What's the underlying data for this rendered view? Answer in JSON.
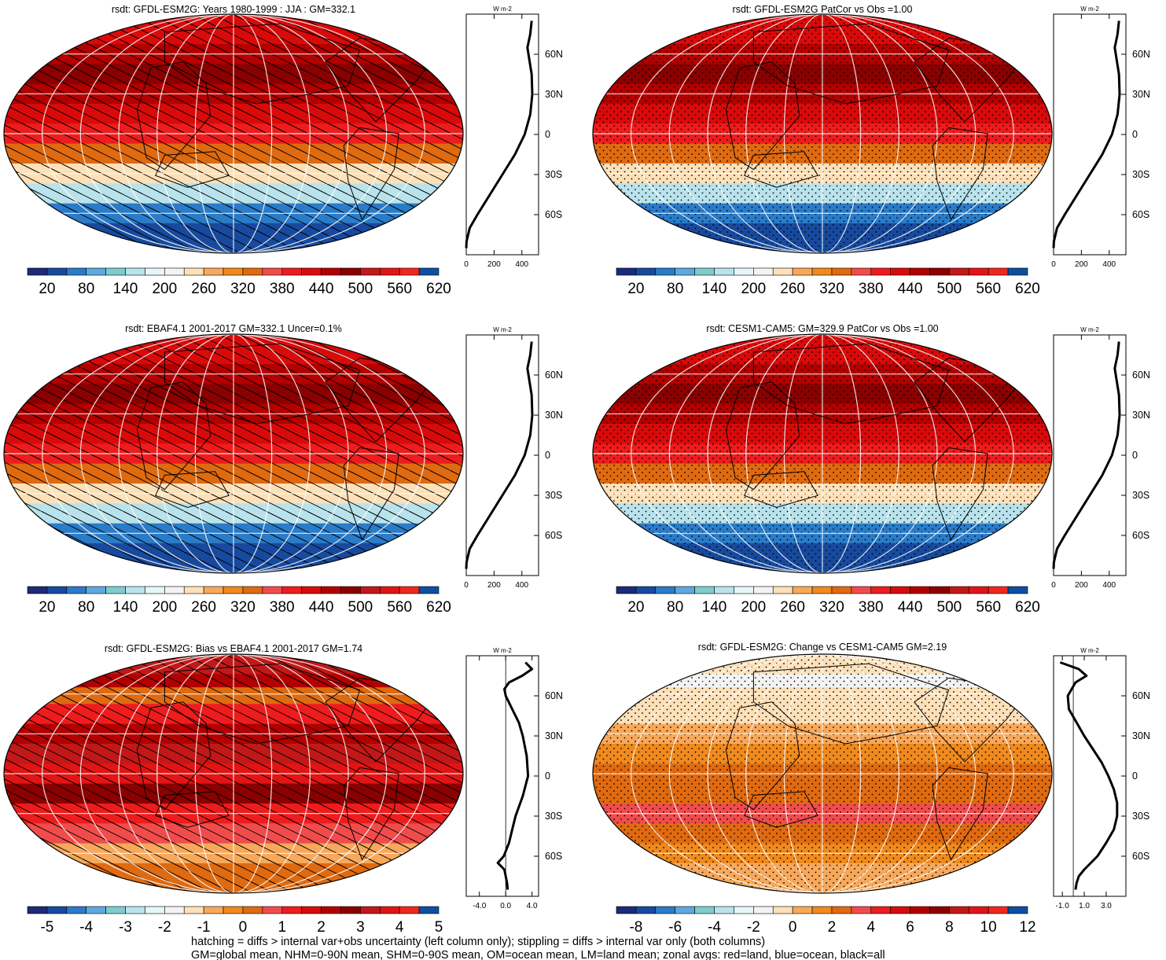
{
  "chart_data": [
    {
      "type": "heatmap",
      "panel": "top-left",
      "title": "rsdt: GFDL-ESM2G: Years 1980-1999 : JJA : GM=332.1",
      "overlay": "hatching",
      "colorbar_labels": [
        "20",
        "80",
        "140",
        "200",
        "260",
        "320",
        "380",
        "440",
        "500",
        "560",
        "620"
      ],
      "lat_bands": [
        {
          "lat": 75,
          "value": 455
        },
        {
          "lat": 60,
          "value": 470
        },
        {
          "lat": 45,
          "value": 495
        },
        {
          "lat": 30,
          "value": 485
        },
        {
          "lat": 15,
          "value": 460
        },
        {
          "lat": 0,
          "value": 400
        },
        {
          "lat": -15,
          "value": 345
        },
        {
          "lat": -30,
          "value": 260
        },
        {
          "lat": -45,
          "value": 165
        },
        {
          "lat": -60,
          "value": 70
        },
        {
          "lat": -75,
          "value": 10
        }
      ],
      "zonal": {
        "unit": "W m-2",
        "xticks": [
          "0",
          "200",
          "400"
        ],
        "xlim": [
          0,
          520
        ],
        "lats": [
          85,
          75,
          65,
          55,
          45,
          30,
          15,
          0,
          -15,
          -30,
          -45,
          -60,
          -70,
          -80,
          -85
        ],
        "values": [
          470,
          460,
          440,
          455,
          470,
          475,
          460,
          420,
          350,
          260,
          170,
          80,
          25,
          2,
          0
        ]
      },
      "lat_labels": [
        "60N",
        "30N",
        "0",
        "30S",
        "60S"
      ]
    },
    {
      "type": "heatmap",
      "panel": "top-right",
      "title": "rsdt: GFDL-ESM2G PatCor vs Obs =1.00",
      "overlay": "stippling",
      "colorbar_labels": [
        "20",
        "80",
        "140",
        "200",
        "260",
        "320",
        "380",
        "440",
        "500",
        "560",
        "620"
      ],
      "lat_bands": [
        {
          "lat": 75,
          "value": 455
        },
        {
          "lat": 60,
          "value": 470
        },
        {
          "lat": 45,
          "value": 495
        },
        {
          "lat": 30,
          "value": 485
        },
        {
          "lat": 15,
          "value": 460
        },
        {
          "lat": 0,
          "value": 400
        },
        {
          "lat": -15,
          "value": 345
        },
        {
          "lat": -30,
          "value": 260
        },
        {
          "lat": -45,
          "value": 165
        },
        {
          "lat": -60,
          "value": 70
        },
        {
          "lat": -75,
          "value": 10
        }
      ],
      "zonal": {
        "unit": "W m-2",
        "xticks": [
          "0",
          "200",
          "400"
        ],
        "xlim": [
          0,
          520
        ],
        "lats": [
          85,
          75,
          65,
          55,
          45,
          30,
          15,
          0,
          -15,
          -30,
          -45,
          -60,
          -70,
          -80,
          -85
        ],
        "values": [
          470,
          460,
          440,
          455,
          470,
          475,
          460,
          420,
          350,
          260,
          170,
          80,
          25,
          2,
          0
        ]
      },
      "lat_labels": [
        "60N",
        "30N",
        "0",
        "30S",
        "60S"
      ]
    },
    {
      "type": "heatmap",
      "panel": "middle-left",
      "title": "rsdt: EBAF4.1 2001-2017 GM=332.1 Uncer=0.1%",
      "overlay": "hatching",
      "colorbar_labels": [
        "20",
        "80",
        "140",
        "200",
        "260",
        "320",
        "380",
        "440",
        "500",
        "560",
        "620"
      ],
      "lat_bands": [
        {
          "lat": 75,
          "value": 455
        },
        {
          "lat": 60,
          "value": 470
        },
        {
          "lat": 45,
          "value": 495
        },
        {
          "lat": 30,
          "value": 485
        },
        {
          "lat": 15,
          "value": 460
        },
        {
          "lat": 0,
          "value": 400
        },
        {
          "lat": -15,
          "value": 345
        },
        {
          "lat": -30,
          "value": 260
        },
        {
          "lat": -45,
          "value": 165
        },
        {
          "lat": -60,
          "value": 70
        },
        {
          "lat": -75,
          "value": 10
        }
      ],
      "zonal": {
        "unit": "W m-2",
        "xticks": [
          "0",
          "200",
          "400"
        ],
        "xlim": [
          0,
          520
        ],
        "lats": [
          85,
          75,
          65,
          55,
          45,
          30,
          15,
          0,
          -15,
          -30,
          -45,
          -60,
          -70,
          -80,
          -85
        ],
        "values": [
          470,
          460,
          440,
          455,
          470,
          475,
          460,
          420,
          350,
          260,
          170,
          80,
          25,
          2,
          0
        ]
      },
      "lat_labels": [
        "60N",
        "30N",
        "0",
        "30S",
        "60S"
      ]
    },
    {
      "type": "heatmap",
      "panel": "middle-right",
      "title": "rsdt: CESM1-CAM5: GM=329.9 PatCor vs Obs =1.00",
      "overlay": "stippling",
      "colorbar_labels": [
        "20",
        "80",
        "140",
        "200",
        "260",
        "320",
        "380",
        "440",
        "500",
        "560",
        "620"
      ],
      "lat_bands": [
        {
          "lat": 75,
          "value": 455
        },
        {
          "lat": 60,
          "value": 470
        },
        {
          "lat": 45,
          "value": 495
        },
        {
          "lat": 30,
          "value": 485
        },
        {
          "lat": 15,
          "value": 460
        },
        {
          "lat": 0,
          "value": 400
        },
        {
          "lat": -15,
          "value": 345
        },
        {
          "lat": -30,
          "value": 260
        },
        {
          "lat": -45,
          "value": 165
        },
        {
          "lat": -60,
          "value": 70
        },
        {
          "lat": -75,
          "value": 10
        }
      ],
      "zonal": {
        "unit": "W m-2",
        "xticks": [
          "0",
          "200",
          "400"
        ],
        "xlim": [
          0,
          520
        ],
        "lats": [
          85,
          75,
          65,
          55,
          45,
          30,
          15,
          0,
          -15,
          -30,
          -45,
          -60,
          -70,
          -80,
          -85
        ],
        "values": [
          470,
          460,
          440,
          455,
          470,
          475,
          460,
          420,
          350,
          260,
          170,
          80,
          25,
          2,
          0
        ]
      },
      "lat_labels": [
        "60N",
        "30N",
        "0",
        "30S",
        "60S"
      ]
    },
    {
      "type": "heatmap",
      "panel": "bottom-left",
      "title": "rsdt: GFDL-ESM2G: Bias vs EBAF4.1 2001-2017 GM=1.74",
      "overlay": "hatching",
      "colorbar_labels": [
        "-5",
        "-4",
        "-3",
        "-2",
        "-1",
        "0",
        "1",
        "2",
        "3",
        "4",
        "5"
      ],
      "lat_bands": [
        {
          "lat": 80,
          "value": 3.5
        },
        {
          "lat": 70,
          "value": 2.5
        },
        {
          "lat": 60,
          "value": 0.5
        },
        {
          "lat": 45,
          "value": 1.5
        },
        {
          "lat": 30,
          "value": 2.5
        },
        {
          "lat": 15,
          "value": 3.5
        },
        {
          "lat": 0,
          "value": 4.2
        },
        {
          "lat": -15,
          "value": 3.0
        },
        {
          "lat": -30,
          "value": 1.8
        },
        {
          "lat": -45,
          "value": 0.8
        },
        {
          "lat": -60,
          "value": -0.4
        },
        {
          "lat": -75,
          "value": 0.6
        }
      ],
      "zonal": {
        "unit": "W m-2",
        "xticks": [
          "-4.0",
          "0.0",
          "4.0"
        ],
        "xlim": [
          -6,
          5
        ],
        "lats": [
          85,
          80,
          75,
          70,
          65,
          60,
          50,
          40,
          30,
          15,
          0,
          -15,
          -30,
          -40,
          -50,
          -60,
          -65,
          -70,
          -75,
          -80,
          -85
        ],
        "values": [
          3.0,
          4.0,
          2.5,
          0.5,
          -0.2,
          0.0,
          1.0,
          2.0,
          2.6,
          3.2,
          3.4,
          2.6,
          1.5,
          1.0,
          0.5,
          -0.3,
          -1.2,
          -0.2,
          0.0,
          0.2,
          0.3
        ]
      },
      "lat_labels": [
        "60N",
        "30N",
        "0",
        "30S",
        "60S"
      ]
    },
    {
      "type": "heatmap",
      "panel": "bottom-right",
      "title": "rsdt: GFDL-ESM2G: Change vs CESM1-CAM5 GM=2.19",
      "overlay": "stippling",
      "colorbar_labels": [
        "-8",
        "-6",
        "-4",
        "-2",
        "0",
        "2",
        "4",
        "6",
        "8",
        "10",
        "12"
      ],
      "lat_bands": [
        {
          "lat": 80,
          "value": -0.5
        },
        {
          "lat": 70,
          "value": -0.8
        },
        {
          "lat": 60,
          "value": -0.6
        },
        {
          "lat": 45,
          "value": 0.2
        },
        {
          "lat": 30,
          "value": 1.0
        },
        {
          "lat": 15,
          "value": 2.0
        },
        {
          "lat": 0,
          "value": 3.0
        },
        {
          "lat": -15,
          "value": 3.5
        },
        {
          "lat": -30,
          "value": 3.6
        },
        {
          "lat": -45,
          "value": 3.0
        },
        {
          "lat": -60,
          "value": 2.2
        },
        {
          "lat": -75,
          "value": 1.0
        }
      ],
      "zonal": {
        "unit": "W m-2",
        "xticks": [
          "-1.0",
          "1.0",
          "3.0"
        ],
        "xlim": [
          -1.8,
          4.8
        ],
        "lats": [
          85,
          80,
          75,
          70,
          60,
          50,
          40,
          30,
          20,
          10,
          0,
          -10,
          -20,
          -30,
          -40,
          -50,
          -60,
          -65,
          -70,
          -75,
          -80,
          -85
        ],
        "values": [
          -1.2,
          0.5,
          1.2,
          0.2,
          -0.5,
          -0.4,
          0.3,
          1.0,
          1.8,
          2.6,
          3.2,
          3.7,
          4.0,
          4.0,
          3.7,
          3.0,
          2.2,
          1.6,
          1.0,
          0.5,
          0.3,
          0.2
        ]
      },
      "lat_labels": [
        "60N",
        "30N",
        "0",
        "30S",
        "60S"
      ]
    }
  ],
  "footnote": {
    "line1": "hatching = diffs > internal var+obs uncertainty (left column only); stippling = diffs > internal var only (both columns)",
    "line2": "GM=global mean, NHM=0-90N mean, SHM=0-90S mean, OM=ocean mean, LM=land mean; zonal avgs: red=land, blue=ocean, black=all"
  },
  "unit_label": "W m-2",
  "colors": {
    "bg": "#ffffff",
    "palette": [
      "#1b2a7a",
      "#174a9e",
      "#2a7bc8",
      "#5ea8df",
      "#7fcbd0",
      "#b9e3ec",
      "#e6f6f8",
      "#f3f3f3",
      "#fde0b8",
      "#f8a85a",
      "#f08a1e",
      "#e06a10",
      "#f14c4c",
      "#ee1c1c",
      "#d90a0a",
      "#b30000",
      "#8b0000",
      "#c21818",
      "#e31414",
      "#f0271f",
      "#0d4fa0"
    ]
  }
}
